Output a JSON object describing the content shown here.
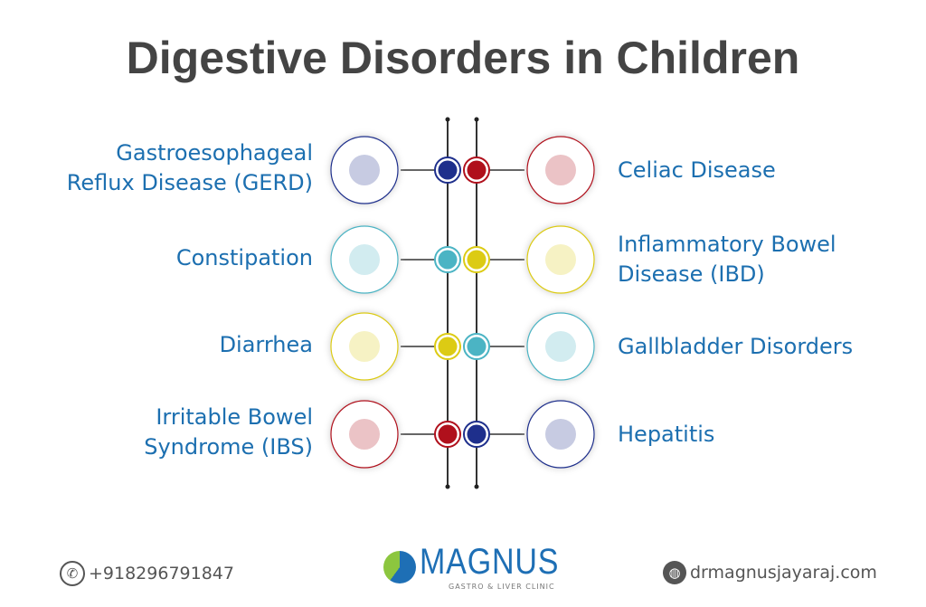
{
  "title": "Digestive Disorders in Children",
  "left_items": [
    {
      "label": "Gastroesophageal Reflux Disease (GERD)",
      "lines": [
        "Gastroesophageal",
        "Reflux Disease (GERD)"
      ],
      "icon": "stomach-icon",
      "node_color": "#1e2f8c"
    },
    {
      "label": "Constipation",
      "lines": [
        "Constipation"
      ],
      "icon": "child-on-toilet-icon",
      "node_color": "#4bb4c4"
    },
    {
      "label": "Diarrhea",
      "lines": [
        "Diarrhea"
      ],
      "icon": "child-on-toilet-icon",
      "node_color": "#dccb14"
    },
    {
      "label": "Irritable Bowel Syndrome (IBS)",
      "lines": [
        "Irritable Bowel",
        "Syndrome (IBS)"
      ],
      "icon": "intestine-icon",
      "node_color": "#b0101c"
    }
  ],
  "right_items": [
    {
      "label": "Celiac Disease",
      "lines": [
        "Celiac Disease"
      ],
      "icon": "no-bread-icon",
      "node_color": "#b0101c"
    },
    {
      "label": "Inflammatory Bowel Disease (IBD)",
      "lines": [
        "Inflammatory Bowel",
        "Disease (IBD)"
      ],
      "icon": "abdomen-pain-icon",
      "node_color": "#dccb14"
    },
    {
      "label": "Gallbladder Disorders",
      "lines": [
        "Gallbladder Disorders"
      ],
      "icon": "gallbladder-icon",
      "node_color": "#4bb4c4"
    },
    {
      "label": "Hepatitis",
      "lines": [
        "Hepatitis"
      ],
      "icon": "liver-icon",
      "node_color": "#1e2f8c"
    }
  ],
  "footer": {
    "phone": "+918296791847",
    "logo_name": "MAGNUS",
    "logo_tagline": "GASTRO & LIVER CLINIC",
    "website": "drmagnusjayaraj.com"
  }
}
